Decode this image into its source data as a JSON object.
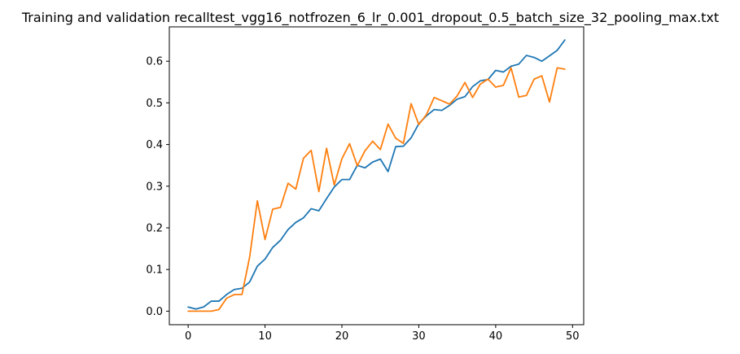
{
  "chart_data": {
    "type": "line",
    "title": "Training and validation recalltest_vgg16_notfrozen_6_lr_0.001_dropout_0.5_batch_size_32_pooling_max.txt",
    "xlabel": "",
    "ylabel": "",
    "xlim": [
      -2.45,
      51.45
    ],
    "ylim": [
      -0.0325,
      0.6825
    ],
    "xticks": [
      0,
      10,
      20,
      30,
      40,
      50
    ],
    "yticks": [
      0.0,
      0.1,
      0.2,
      0.3,
      0.4,
      0.5,
      0.6
    ],
    "ytick_labels": [
      "0.0",
      "0.1",
      "0.2",
      "0.3",
      "0.4",
      "0.5",
      "0.6"
    ],
    "grid": false,
    "legend": "none",
    "x": [
      0,
      1,
      2,
      3,
      4,
      5,
      6,
      7,
      8,
      9,
      10,
      11,
      12,
      13,
      14,
      15,
      16,
      17,
      18,
      19,
      20,
      21,
      22,
      23,
      24,
      25,
      26,
      27,
      28,
      29,
      30,
      31,
      32,
      33,
      34,
      35,
      36,
      37,
      38,
      39,
      40,
      41,
      42,
      43,
      44,
      45,
      46,
      47,
      48,
      49
    ],
    "series": [
      {
        "color": "#1f77b4",
        "values": [
          0.01,
          0.005,
          0.01,
          0.024,
          0.024,
          0.04,
          0.052,
          0.055,
          0.07,
          0.108,
          0.125,
          0.153,
          0.17,
          0.196,
          0.213,
          0.224,
          0.246,
          0.241,
          0.27,
          0.298,
          0.316,
          0.316,
          0.35,
          0.344,
          0.358,
          0.365,
          0.335,
          0.395,
          0.396,
          0.416,
          0.45,
          0.469,
          0.484,
          0.482,
          0.494,
          0.509,
          0.515,
          0.539,
          0.553,
          0.556,
          0.578,
          0.574,
          0.588,
          0.593,
          0.614,
          0.609,
          0.6,
          0.613,
          0.626,
          0.651
        ]
      },
      {
        "color": "#ff7f0e",
        "values": [
          0.0,
          0.0,
          0.0,
          0.0,
          0.004,
          0.031,
          0.04,
          0.04,
          0.13,
          0.265,
          0.172,
          0.245,
          0.249,
          0.307,
          0.293,
          0.367,
          0.386,
          0.287,
          0.391,
          0.303,
          0.366,
          0.402,
          0.349,
          0.385,
          0.408,
          0.388,
          0.449,
          0.415,
          0.403,
          0.498,
          0.448,
          0.472,
          0.513,
          0.505,
          0.497,
          0.517,
          0.549,
          0.513,
          0.545,
          0.557,
          0.538,
          0.542,
          0.584,
          0.514,
          0.518,
          0.557,
          0.565,
          0.502,
          0.584,
          0.581
        ]
      }
    ]
  }
}
